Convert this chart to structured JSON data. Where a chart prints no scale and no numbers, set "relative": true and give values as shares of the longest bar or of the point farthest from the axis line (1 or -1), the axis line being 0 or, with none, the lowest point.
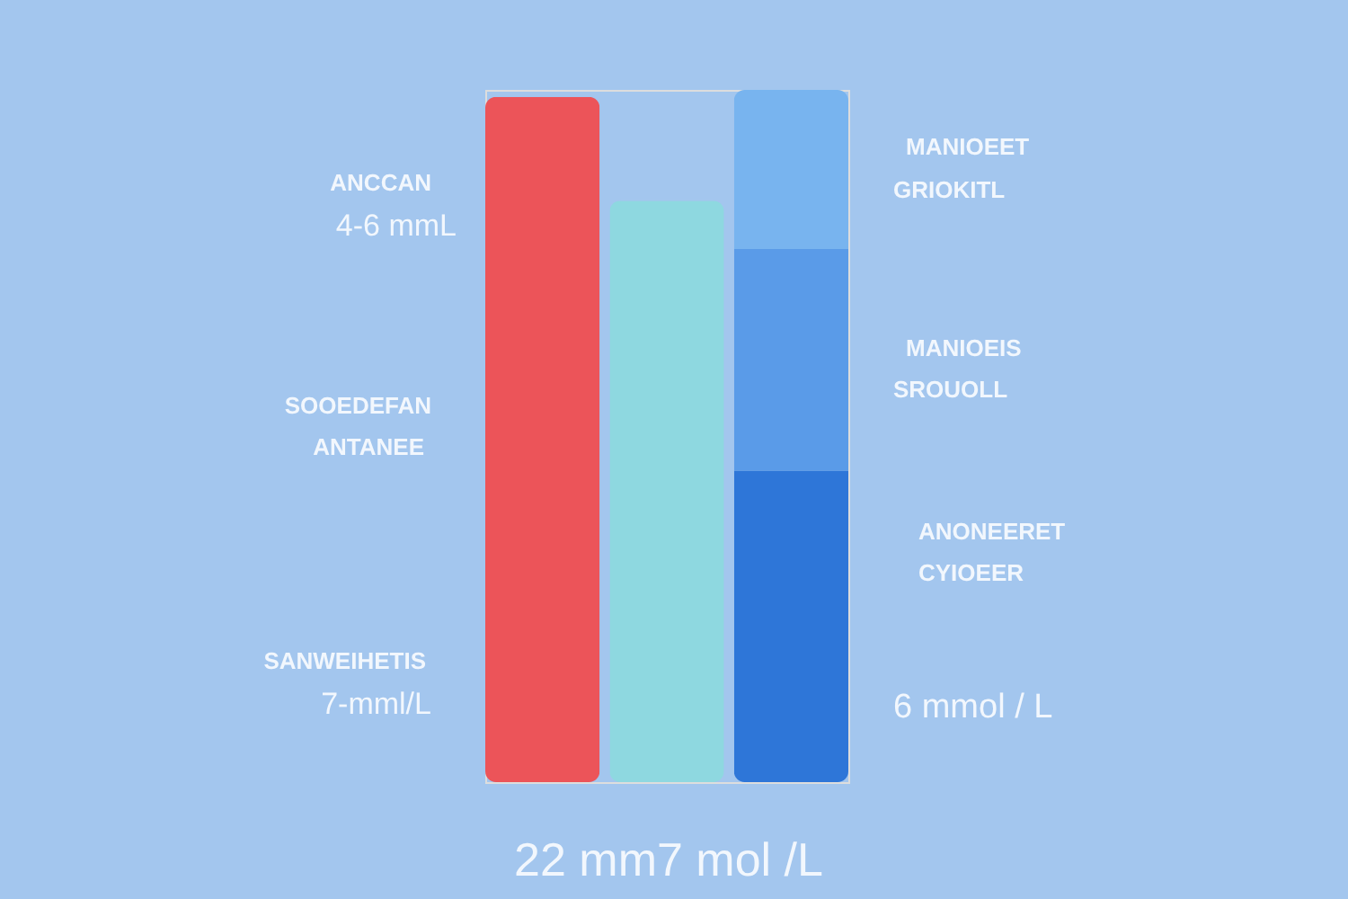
{
  "chart_data": {
    "type": "bar",
    "relative": true,
    "stacked": true,
    "categories": [
      null,
      null,
      null
    ],
    "series": [
      {
        "colors": [
          "#ec5459",
          "#8ed8e0",
          "#2e76d8"
        ],
        "values": [
          0.99,
          0.84,
          0.45
        ]
      },
      {
        "color": "#5a9be8",
        "values": [
          null,
          null,
          0.32
        ]
      },
      {
        "color": "#78b4ef",
        "values": [
          null,
          null,
          0.23
        ]
      }
    ],
    "annotations": [
      "ANCCAN",
      "4-6 mmL",
      "SOOEDEFAN",
      "ANTANEE",
      "SANWEIHETIS",
      "7-mml/L",
      "MANIOEET",
      "GRIOKITL",
      "MANIOEIS",
      "SROUOLL",
      "ANONEERET",
      "CYIOEER",
      "6 mmol / L",
      "22 mm7 mol /L"
    ]
  }
}
